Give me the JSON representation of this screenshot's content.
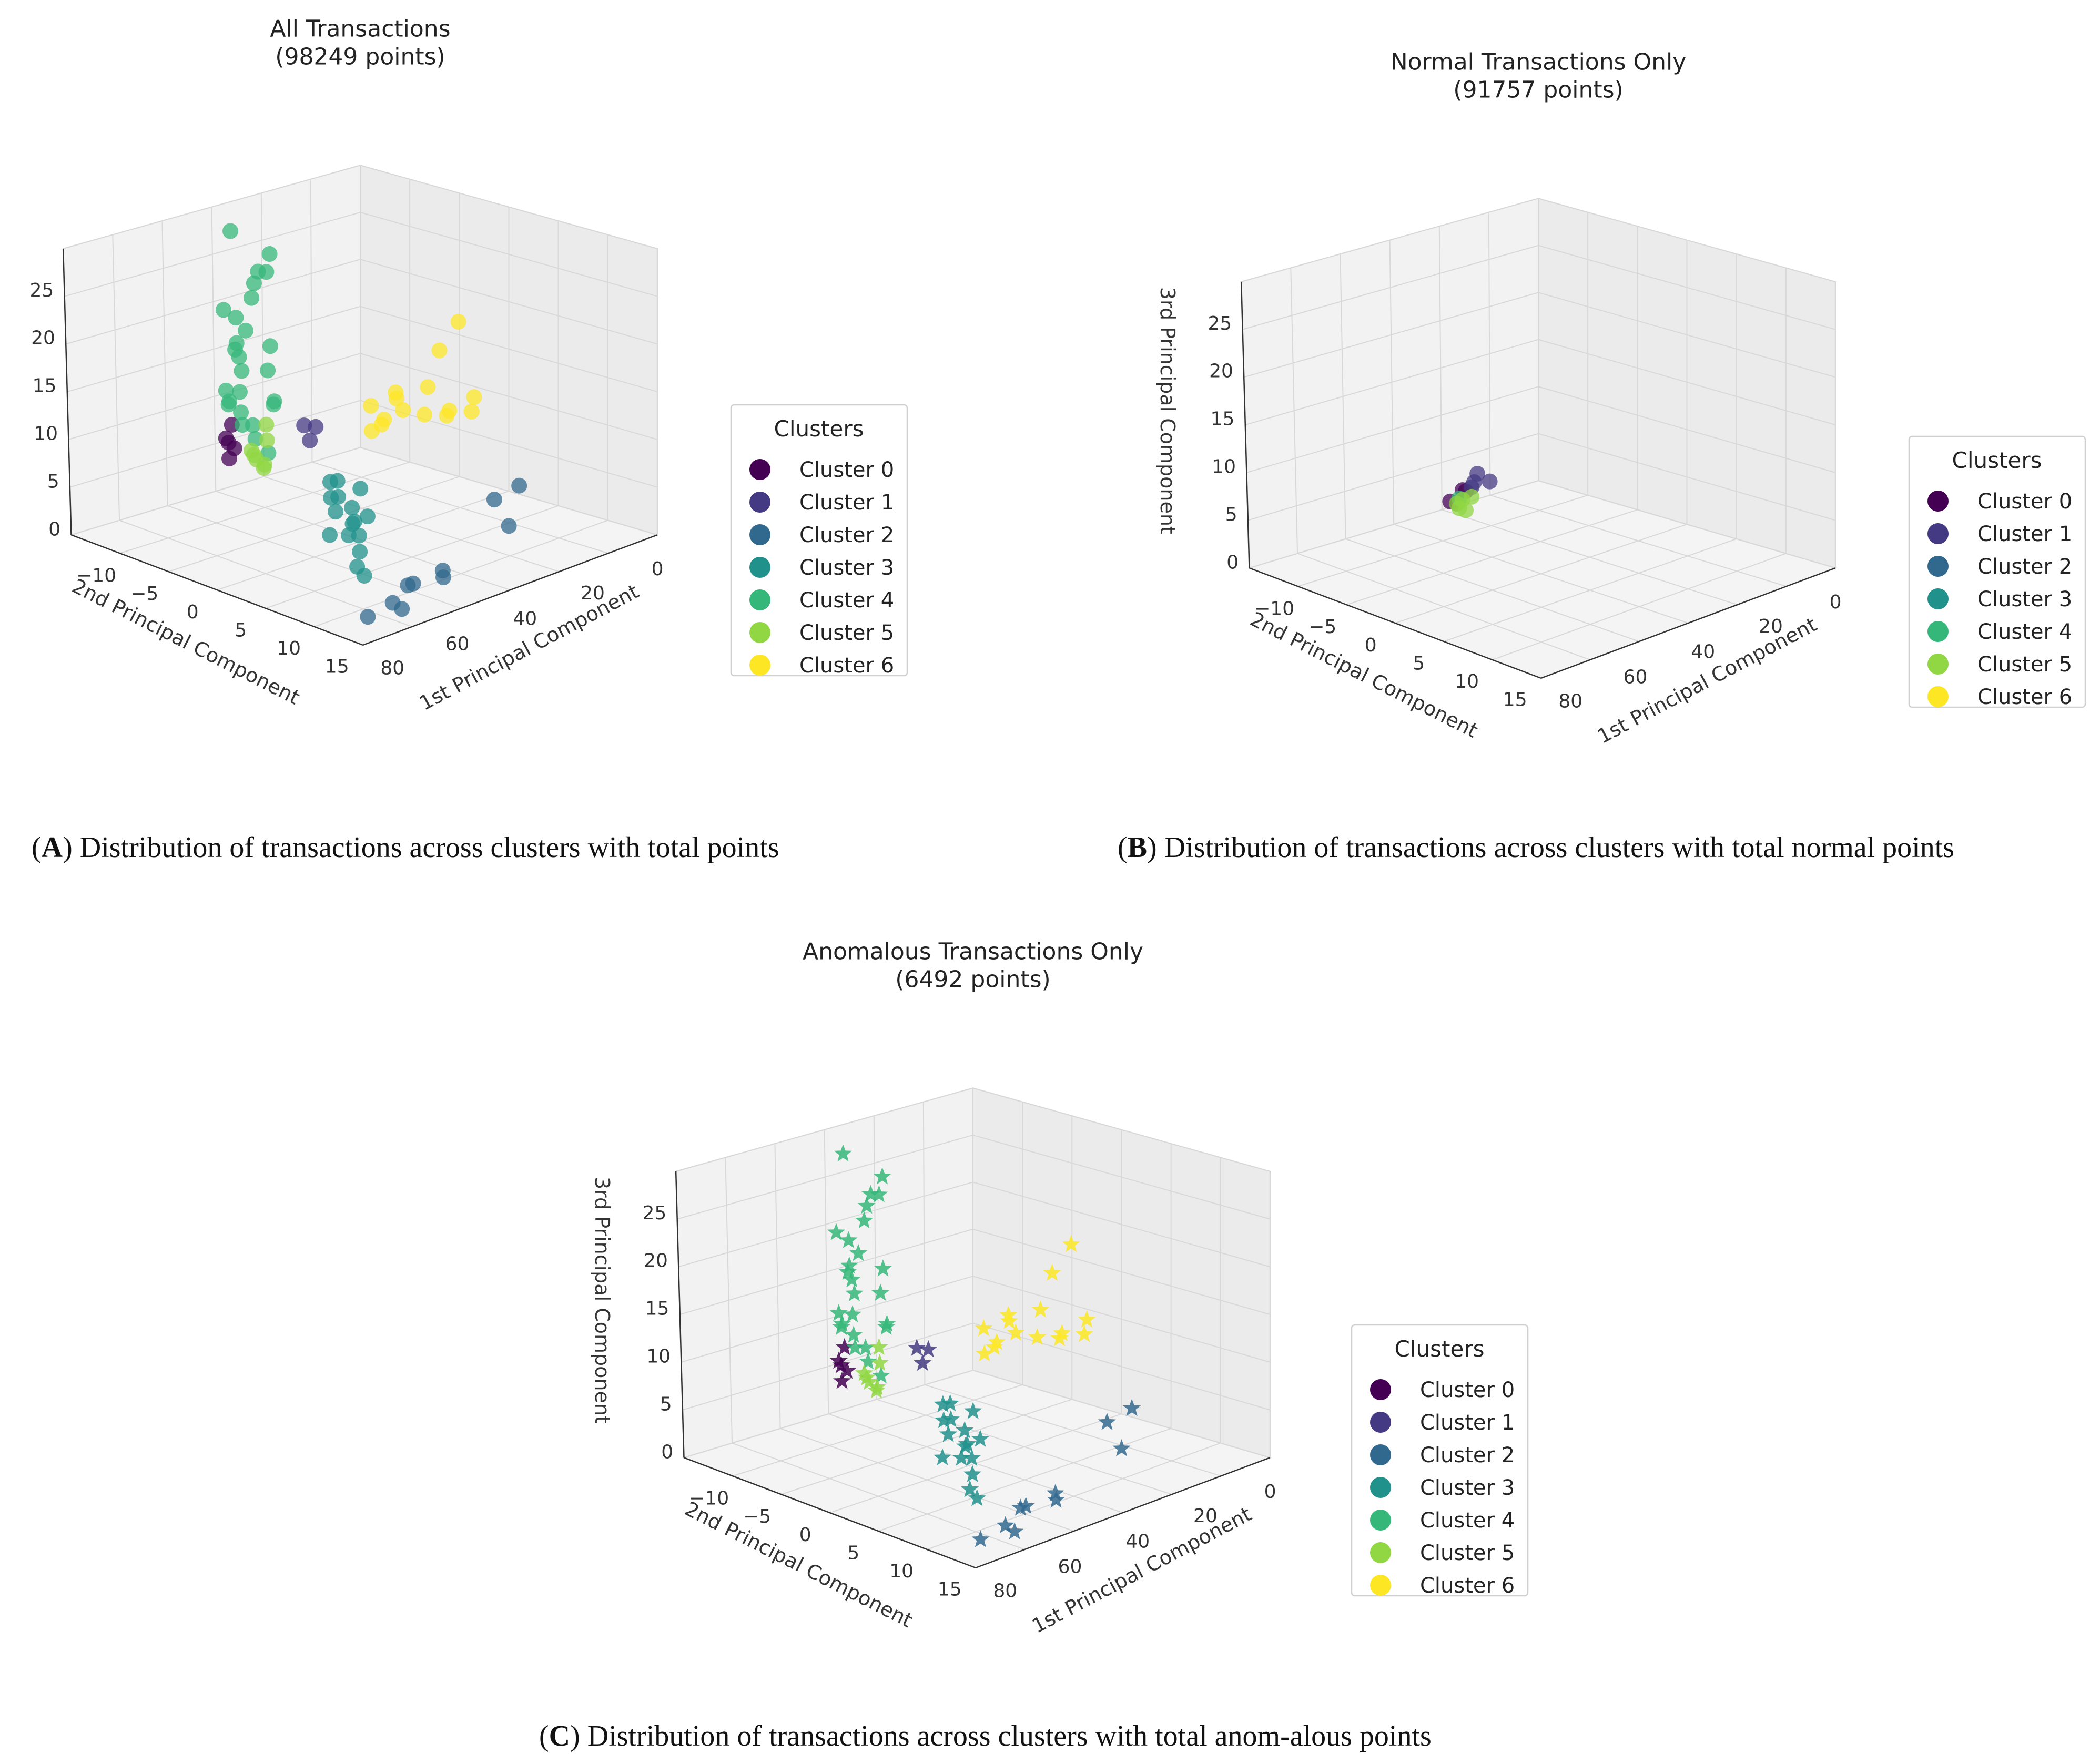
{
  "figure": {
    "captions": [
      {
        "label": "A",
        "text": ") Distribution of transactions across clusters with total points"
      },
      {
        "label": "B",
        "text": ") Distribution of transactions across clusters with total normal points"
      },
      {
        "label": "C",
        "text": ") Distribution of transactions across clusters with total anom-alous points"
      }
    ]
  },
  "legend": {
    "title": "Clusters",
    "entries": [
      "Cluster 0",
      "Cluster 1",
      "Cluster 2",
      "Cluster 3",
      "Cluster 4",
      "Cluster 5",
      "Cluster 6"
    ],
    "colors": [
      "#440154",
      "#443983",
      "#31688e",
      "#21918c",
      "#35b779",
      "#90d743",
      "#fde725"
    ]
  },
  "chart_data": [
    {
      "id": "A",
      "type": "scatter3d",
      "marker": "circle",
      "title": "All Transactions",
      "subtitle": "(98249 points)",
      "xlabel": "1st Principal Component",
      "ylabel": "2nd Principal Component",
      "zlabel": "",
      "xticks": [
        "0",
        "20",
        "40",
        "60",
        "80"
      ],
      "yticks": [
        "−10",
        "−5",
        "0",
        "5",
        "10",
        "15"
      ],
      "zticks": [
        "0",
        "5",
        "10",
        "15",
        "20",
        "25"
      ],
      "xlim": [
        0,
        90
      ],
      "ylim": [
        -15,
        17
      ],
      "zlim": [
        0,
        30
      ],
      "series": [
        {
          "cluster": 0,
          "points": [
            [
              15,
              5,
              8
            ],
            [
              17,
              6,
              9
            ],
            [
              14,
              4,
              7
            ],
            [
              16,
              5,
              10
            ],
            [
              18,
              6,
              7
            ]
          ]
        },
        {
          "cluster": 1,
          "points": [
            [
              25,
              -1,
              9
            ],
            [
              26,
              0,
              8
            ],
            [
              27,
              1,
              10
            ]
          ]
        },
        {
          "cluster": 2,
          "points": [
            [
              85,
              12,
              2
            ],
            [
              84,
              10,
              3
            ],
            [
              85,
              11,
              1
            ],
            [
              60,
              -8,
              3
            ],
            [
              62,
              -10,
              4
            ],
            [
              70,
              -6,
              2
            ],
            [
              75,
              3,
              1
            ],
            [
              80,
              8,
              2
            ],
            [
              83,
              14,
              1
            ],
            [
              78,
              4,
              1
            ]
          ]
        },
        {
          "cluster": 3,
          "points": [
            [
              45,
              4,
              4
            ],
            [
              48,
              3,
              3
            ],
            [
              50,
              4,
              5
            ],
            [
              47,
              2,
              6
            ],
            [
              52,
              3,
              4
            ],
            [
              55,
              5,
              3
            ],
            [
              58,
              6,
              2
            ],
            [
              53,
              5,
              4
            ],
            [
              49,
              4,
              2
            ],
            [
              60,
              7,
              1
            ],
            [
              65,
              8,
              1
            ],
            [
              40,
              2,
              6
            ],
            [
              35,
              1,
              5
            ],
            [
              43,
              3,
              5
            ],
            [
              46,
              5,
              2
            ],
            [
              38,
              2,
              4
            ]
          ]
        },
        {
          "cluster": 4,
          "points": [
            [
              15,
              5,
              12
            ],
            [
              17,
              6,
              14
            ],
            [
              19,
              5,
              16
            ],
            [
              21,
              6,
              18
            ],
            [
              23,
              7,
              20
            ],
            [
              20,
              6,
              22
            ],
            [
              22,
              5,
              24
            ],
            [
              24,
              7,
              15
            ],
            [
              18,
              6,
              13
            ],
            [
              16,
              4,
              11
            ],
            [
              26,
              6,
              10
            ],
            [
              28,
              7,
              12
            ],
            [
              30,
              6,
              9
            ],
            [
              27,
              5,
              17
            ],
            [
              25,
              4,
              19
            ],
            [
              21,
              3,
              26
            ],
            [
              22,
              3,
              28
            ],
            [
              23,
              6,
              21
            ],
            [
              19,
              7,
              23
            ],
            [
              20,
              4,
              25
            ],
            [
              24,
              5,
              27
            ],
            [
              26,
              4,
              13
            ],
            [
              29,
              5,
              14
            ],
            [
              17,
              5,
              18
            ],
            [
              10,
              3,
              29
            ],
            [
              22,
              6,
              11
            ]
          ]
        },
        {
          "cluster": 5,
          "points": [
            [
              18,
              3,
              6
            ],
            [
              20,
              4,
              7
            ],
            [
              22,
              5,
              8
            ],
            [
              24,
              4,
              9
            ],
            [
              26,
              5,
              7
            ],
            [
              21,
              3,
              10
            ],
            [
              23,
              4,
              6
            ]
          ]
        },
        {
          "cluster": 6,
          "points": [
            [
              38,
              -12,
              18
            ],
            [
              40,
              -10,
              9
            ],
            [
              35,
              -7,
              10
            ],
            [
              32,
              -6,
              9
            ],
            [
              36,
              -9,
              9
            ],
            [
              30,
              -8,
              11
            ],
            [
              34,
              -5,
              9
            ],
            [
              38,
              -11,
              9
            ],
            [
              28,
              -6,
              10
            ],
            [
              37,
              -9,
              12
            ],
            [
              35,
              -11,
              15
            ],
            [
              40,
              -13,
              10
            ],
            [
              42,
              -12,
              9
            ],
            [
              31,
              -5,
              8
            ],
            [
              33,
              -7,
              11
            ]
          ]
        }
      ]
    },
    {
      "id": "B",
      "type": "scatter3d",
      "marker": "circle",
      "title": "Normal Transactions Only",
      "subtitle": "(91757 points)",
      "xlabel": "1st Principal Component",
      "ylabel": "2nd Principal Component",
      "zlabel": "3rd Principal Component",
      "xticks": [
        "0",
        "20",
        "40",
        "60",
        "80"
      ],
      "yticks": [
        "−10",
        "−5",
        "0",
        "5",
        "10",
        "15"
      ],
      "zticks": [
        "0",
        "5",
        "10",
        "15",
        "20",
        "25"
      ],
      "xlim": [
        0,
        90
      ],
      "ylim": [
        -15,
        17
      ],
      "zlim": [
        0,
        30
      ],
      "series": [
        {
          "cluster": 0,
          "points": [
            [
              21,
              1,
              6
            ],
            [
              22,
              1,
              6
            ],
            [
              20,
              2,
              5
            ],
            [
              22,
              2,
              5
            ]
          ]
        },
        {
          "cluster": 1,
          "points": [
            [
              19,
              -1,
              6
            ],
            [
              20,
              -1,
              7
            ],
            [
              21,
              -2,
              6
            ],
            [
              21,
              0,
              6
            ]
          ]
        },
        {
          "cluster": 2,
          "points": []
        },
        {
          "cluster": 3,
          "points": []
        },
        {
          "cluster": 4,
          "points": [
            [
              20,
              1,
              5
            ]
          ]
        },
        {
          "cluster": 5,
          "points": [
            [
              21,
              1,
              5
            ],
            [
              22,
              2,
              5
            ],
            [
              21,
              0,
              5
            ],
            [
              20,
              1,
              4
            ],
            [
              22,
              1,
              4
            ]
          ]
        },
        {
          "cluster": 6,
          "points": []
        }
      ]
    },
    {
      "id": "C",
      "type": "scatter3d",
      "marker": "star",
      "title": "Anomalous Transactions Only",
      "subtitle": "(6492 points)",
      "xlabel": "1st Principal Component",
      "ylabel": "2nd Principal Component",
      "zlabel": "3rd Principal Component",
      "xticks": [
        "0",
        "20",
        "40",
        "60",
        "80"
      ],
      "yticks": [
        "−10",
        "−5",
        "0",
        "5",
        "10",
        "15"
      ],
      "zticks": [
        "0",
        "5",
        "10",
        "15",
        "20",
        "25"
      ],
      "xlim": [
        0,
        90
      ],
      "ylim": [
        -15,
        17
      ],
      "zlim": [
        0,
        30
      ],
      "series": [
        {
          "cluster": 0,
          "points": [
            [
              15,
              5,
              8
            ],
            [
              17,
              6,
              9
            ],
            [
              14,
              4,
              7
            ],
            [
              16,
              5,
              10
            ],
            [
              18,
              6,
              7
            ]
          ]
        },
        {
          "cluster": 1,
          "points": [
            [
              25,
              -1,
              9
            ],
            [
              26,
              0,
              8
            ],
            [
              27,
              1,
              10
            ]
          ]
        },
        {
          "cluster": 2,
          "points": [
            [
              85,
              12,
              2
            ],
            [
              84,
              10,
              3
            ],
            [
              85,
              11,
              1
            ],
            [
              60,
              -8,
              3
            ],
            [
              62,
              -10,
              4
            ],
            [
              70,
              -6,
              2
            ],
            [
              75,
              3,
              1
            ],
            [
              80,
              8,
              2
            ],
            [
              83,
              14,
              1
            ],
            [
              78,
              4,
              1
            ]
          ]
        },
        {
          "cluster": 3,
          "points": [
            [
              45,
              4,
              4
            ],
            [
              48,
              3,
              3
            ],
            [
              50,
              4,
              5
            ],
            [
              47,
              2,
              6
            ],
            [
              52,
              3,
              4
            ],
            [
              55,
              5,
              3
            ],
            [
              58,
              6,
              2
            ],
            [
              53,
              5,
              4
            ],
            [
              49,
              4,
              2
            ],
            [
              60,
              7,
              1
            ],
            [
              65,
              8,
              1
            ],
            [
              40,
              2,
              6
            ],
            [
              35,
              1,
              5
            ],
            [
              43,
              3,
              5
            ],
            [
              46,
              5,
              2
            ],
            [
              38,
              2,
              4
            ]
          ]
        },
        {
          "cluster": 4,
          "points": [
            [
              15,
              5,
              12
            ],
            [
              17,
              6,
              14
            ],
            [
              19,
              5,
              16
            ],
            [
              21,
              6,
              18
            ],
            [
              23,
              7,
              20
            ],
            [
              20,
              6,
              22
            ],
            [
              22,
              5,
              24
            ],
            [
              24,
              7,
              15
            ],
            [
              18,
              6,
              13
            ],
            [
              16,
              4,
              11
            ],
            [
              26,
              6,
              10
            ],
            [
              28,
              7,
              12
            ],
            [
              30,
              6,
              9
            ],
            [
              27,
              5,
              17
            ],
            [
              25,
              4,
              19
            ],
            [
              21,
              3,
              26
            ],
            [
              22,
              3,
              28
            ],
            [
              23,
              6,
              21
            ],
            [
              19,
              7,
              23
            ],
            [
              20,
              4,
              25
            ],
            [
              24,
              5,
              27
            ],
            [
              26,
              4,
              13
            ],
            [
              29,
              5,
              14
            ],
            [
              17,
              5,
              18
            ],
            [
              10,
              3,
              29
            ],
            [
              22,
              6,
              11
            ]
          ]
        },
        {
          "cluster": 5,
          "points": [
            [
              18,
              3,
              6
            ],
            [
              20,
              4,
              7
            ],
            [
              22,
              5,
              8
            ],
            [
              24,
              4,
              9
            ],
            [
              26,
              5,
              7
            ],
            [
              21,
              3,
              10
            ],
            [
              23,
              4,
              6
            ]
          ]
        },
        {
          "cluster": 6,
          "points": [
            [
              38,
              -12,
              18
            ],
            [
              40,
              -10,
              9
            ],
            [
              35,
              -7,
              10
            ],
            [
              32,
              -6,
              9
            ],
            [
              36,
              -9,
              9
            ],
            [
              30,
              -8,
              11
            ],
            [
              34,
              -5,
              9
            ],
            [
              38,
              -11,
              9
            ],
            [
              28,
              -6,
              10
            ],
            [
              37,
              -9,
              12
            ],
            [
              35,
              -11,
              15
            ],
            [
              40,
              -13,
              10
            ],
            [
              42,
              -12,
              9
            ],
            [
              31,
              -5,
              8
            ],
            [
              33,
              -7,
              11
            ]
          ]
        }
      ]
    }
  ]
}
